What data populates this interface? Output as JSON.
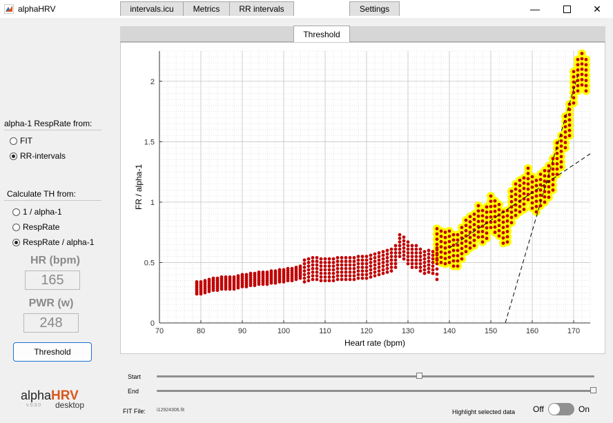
{
  "window": {
    "title": "alphaHRV"
  },
  "left_panel": {
    "resp_rate_title": "alpha-1 RespRate from:",
    "resp_rate_options": [
      "FIT",
      "RR-intervals"
    ],
    "resp_rate_selected": 1,
    "calc_title": "Calculate TH from:",
    "calc_options": [
      "1 / alpha-1",
      "RespRate",
      "RespRate / alpha-1"
    ],
    "calc_selected": 2,
    "hr_label": "HR (bpm)",
    "hr_value": "165",
    "pwr_label": "PWR (w)",
    "pwr_value": "248",
    "threshold_button": "Threshold"
  },
  "logo": {
    "alpha": "alpha",
    "hrv": "HRV",
    "version": "v 0.3.0",
    "sub": "desktop"
  },
  "tabs": [
    "intervals.icu",
    "Metrics",
    "RR intervals",
    "Threshold",
    "Settings"
  ],
  "active_tab": 3,
  "sliders": {
    "start_label": "Start",
    "end_label": "End",
    "start_value": 0.6,
    "end_value": 1.0
  },
  "footer": {
    "fit_label": "FIT File:",
    "fit_value": "i12924306.fit",
    "highlight_label": "Highlight selected data",
    "toggle_off": "Off",
    "toggle_on": "On"
  },
  "colors": {
    "points": "#c00000",
    "highlight": "#ffff00",
    "accent": "#1a6fd1"
  },
  "chart_data": {
    "type": "scatter",
    "xlabel": "Heart rate (bpm)",
    "ylabel": "FR / alpha-1",
    "xlim": [
      70,
      174
    ],
    "ylim": [
      0,
      2.25
    ],
    "xticks": [
      70,
      80,
      90,
      100,
      110,
      120,
      130,
      140,
      150,
      160,
      170
    ],
    "yticks": [
      0,
      0.5,
      1,
      1.5,
      2
    ],
    "grid": "minor",
    "series": [
      {
        "color": "#c00000",
        "highlighted": false,
        "points": [
          [
            79,
            0.29
          ],
          [
            80,
            0.29
          ],
          [
            81,
            0.3
          ],
          [
            82,
            0.31
          ],
          [
            83,
            0.32
          ],
          [
            84,
            0.32
          ],
          [
            85,
            0.33
          ],
          [
            86,
            0.33
          ],
          [
            87,
            0.33
          ],
          [
            88,
            0.33
          ],
          [
            89,
            0.34
          ],
          [
            90,
            0.35
          ],
          [
            91,
            0.35
          ],
          [
            92,
            0.36
          ],
          [
            93,
            0.36
          ],
          [
            94,
            0.37
          ],
          [
            95,
            0.37
          ],
          [
            96,
            0.37
          ],
          [
            97,
            0.38
          ],
          [
            98,
            0.38
          ],
          [
            99,
            0.39
          ],
          [
            100,
            0.39
          ],
          [
            101,
            0.4
          ],
          [
            102,
            0.4
          ],
          [
            103,
            0.41
          ],
          [
            104,
            0.42
          ],
          [
            105,
            0.43
          ],
          [
            106,
            0.44
          ],
          [
            107,
            0.45
          ],
          [
            108,
            0.45
          ],
          [
            109,
            0.44
          ],
          [
            110,
            0.44
          ],
          [
            111,
            0.44
          ],
          [
            112,
            0.44
          ],
          [
            113,
            0.45
          ],
          [
            114,
            0.45
          ],
          [
            115,
            0.45
          ],
          [
            116,
            0.45
          ],
          [
            117,
            0.45
          ],
          [
            118,
            0.46
          ],
          [
            119,
            0.46
          ],
          [
            120,
            0.46
          ],
          [
            121,
            0.47
          ],
          [
            122,
            0.48
          ],
          [
            123,
            0.49
          ],
          [
            124,
            0.5
          ],
          [
            125,
            0.51
          ],
          [
            126,
            0.52
          ],
          [
            127,
            0.55
          ],
          [
            128,
            0.64
          ],
          [
            129,
            0.62
          ],
          [
            130,
            0.58
          ],
          [
            131,
            0.55
          ],
          [
            132,
            0.55
          ],
          [
            133,
            0.52
          ],
          [
            134,
            0.5
          ],
          [
            135,
            0.51
          ],
          [
            136,
            0.5
          ],
          [
            137,
            0.49
          ]
        ]
      },
      {
        "color": "#c00000",
        "highlighted": true,
        "points": [
          [
            137,
            0.65
          ],
          [
            138,
            0.63
          ],
          [
            139,
            0.62
          ],
          [
            140,
            0.63
          ],
          [
            141,
            0.6
          ],
          [
            142,
            0.6
          ],
          [
            143,
            0.66
          ],
          [
            144,
            0.72
          ],
          [
            145,
            0.75
          ],
          [
            146,
            0.77
          ],
          [
            147,
            0.84
          ],
          [
            148,
            0.8
          ],
          [
            149,
            0.83
          ],
          [
            150,
            0.92
          ],
          [
            151,
            0.88
          ],
          [
            152,
            0.85
          ],
          [
            153,
            0.79
          ],
          [
            154,
            0.8
          ],
          [
            155,
            0.96
          ],
          [
            156,
            1.02
          ],
          [
            157,
            1.05
          ],
          [
            158,
            1.07
          ],
          [
            159,
            1.15
          ],
          [
            160,
            1.08
          ],
          [
            161,
            1.05
          ],
          [
            162,
            1.1
          ],
          [
            163,
            1.13
          ],
          [
            164,
            1.17
          ],
          [
            165,
            1.23
          ],
          [
            166,
            1.36
          ],
          [
            167,
            1.42
          ],
          [
            168,
            1.58
          ],
          [
            169,
            1.68
          ],
          [
            170,
            1.95
          ],
          [
            171,
            2.05
          ],
          [
            172,
            2.1
          ],
          [
            173,
            2.05
          ]
        ]
      }
    ],
    "fit_lines": [
      {
        "style": "dashed",
        "from": [
          140,
          0.62
        ],
        "to": [
          174,
          1.4
        ]
      },
      {
        "style": "dashed",
        "from": [
          153.5,
          0
        ],
        "to": [
          171,
          2.05
        ]
      }
    ]
  }
}
